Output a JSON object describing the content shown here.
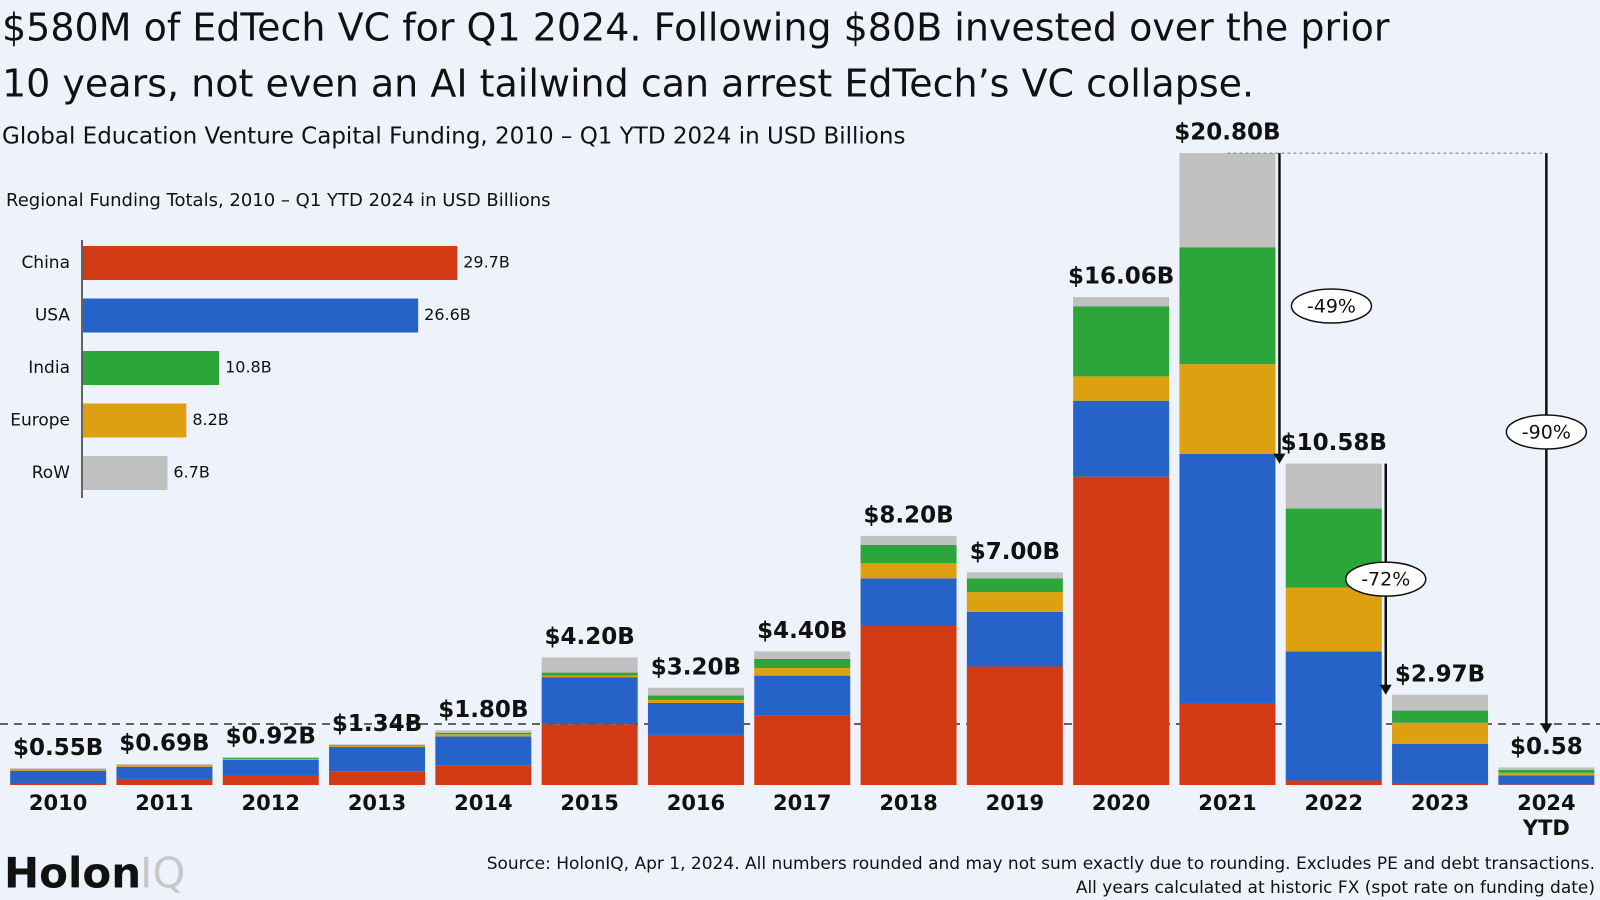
{
  "chart_data": {
    "type": "stacked_bar",
    "title": "$580M of EdTech VC for Q1 2024. Following $80B invested over the prior 10 years, not even an AI tailwind can arrest EdTech’s VC collapse.",
    "subtitle": "Global Education Venture Capital Funding, 2010 – Q1 YTD 2024 in USD Billions",
    "categories": [
      "2010",
      "2011",
      "2012",
      "2013",
      "2014",
      "2015",
      "2016",
      "2017",
      "2018",
      "2019",
      "2020",
      "2021",
      "2022",
      "2023",
      "2024 YTD"
    ],
    "series": [
      {
        "name": "China",
        "color": "#d13a14",
        "values": [
          0.05,
          0.2,
          0.33,
          0.45,
          0.65,
          2.0,
          1.65,
          2.3,
          5.25,
          3.9,
          10.15,
          2.7,
          0.15,
          0.05,
          0.02
        ]
      },
      {
        "name": "USA",
        "color": "#2563c9",
        "values": [
          0.42,
          0.4,
          0.5,
          0.8,
          0.95,
          1.55,
          1.05,
          1.3,
          1.55,
          1.8,
          2.5,
          8.2,
          4.25,
          1.3,
          0.3
        ]
      },
      {
        "name": "Europe",
        "color": "#dca011",
        "values": [
          0.03,
          0.03,
          0.03,
          0.03,
          0.07,
          0.05,
          0.1,
          0.25,
          0.5,
          0.65,
          0.8,
          2.95,
          2.1,
          0.7,
          0.08
        ]
      },
      {
        "name": "India",
        "color": "#2ca53a",
        "values": [
          0.02,
          0.02,
          0.03,
          0.03,
          0.05,
          0.1,
          0.15,
          0.3,
          0.6,
          0.45,
          2.3,
          3.85,
          2.6,
          0.4,
          0.1
        ]
      },
      {
        "name": "RoW",
        "color": "#c0c0c0",
        "values": [
          0.03,
          0.04,
          0.03,
          0.03,
          0.08,
          0.5,
          0.25,
          0.25,
          0.3,
          0.2,
          0.31,
          3.1,
          1.48,
          0.52,
          0.08
        ]
      }
    ],
    "totals": {
      "values": [
        0.55,
        0.69,
        0.92,
        1.34,
        1.8,
        4.2,
        3.2,
        4.4,
        8.2,
        7.0,
        16.06,
        20.8,
        10.58,
        2.97,
        0.58
      ],
      "value_labels": [
        "$0.55B",
        "$0.69B",
        "$0.92B",
        "$1.34B",
        "$1.80B",
        "$4.20B",
        "$3.20B",
        "$4.40B",
        "$8.20B",
        "$7.00B",
        "$16.06B",
        "$20.80B",
        "$10.58B",
        "$2.97B",
        "$0.58"
      ]
    },
    "annotations": [
      "-49%",
      "-72%",
      "-90%"
    ],
    "ylim": [
      0,
      21
    ],
    "inset": {
      "type": "hbar",
      "title": "Regional Funding Totals, 2010 – Q1 YTD 2024 in USD Billions",
      "categories": [
        "China",
        "USA",
        "India",
        "Europe",
        "RoW"
      ],
      "values": [
        29.7,
        26.6,
        10.8,
        8.2,
        6.7
      ],
      "value_labels": [
        "29.7B",
        "26.6B",
        "10.8B",
        "8.2B",
        "6.7B"
      ],
      "colors": [
        "#d13a14",
        "#2563c9",
        "#2ca53a",
        "#dca011",
        "#c0c0c0"
      ],
      "xlim": [
        0,
        30
      ]
    },
    "source": [
      "Source: HolonIQ, Apr 1, 2024. All numbers rounded and may not sum exactly due to rounding. Excludes PE and debt transactions.",
      "All years calculated at historic FX (spot rate on funding date)"
    ],
    "logo": {
      "primary": "Holon",
      "secondary": "IQ"
    }
  }
}
